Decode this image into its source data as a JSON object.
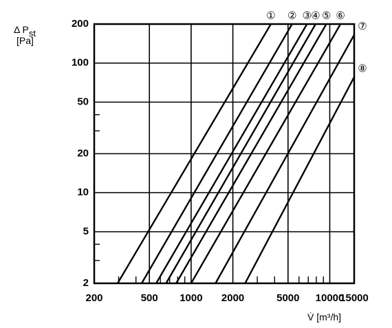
{
  "chart_data": {
    "type": "line",
    "scale": {
      "x": "log",
      "y": "log"
    },
    "xlim": [
      200,
      15000
    ],
    "ylim": [
      2,
      200
    ],
    "grid": true,
    "ylabel": {
      "symbol": "Δ P",
      "subscript": "st",
      "unit": "[Pa]"
    },
    "xlabel": "V̇ [m³/h]",
    "x_ticks": [
      {
        "value": 200,
        "label": "200"
      },
      {
        "value": 500,
        "label": "500"
      },
      {
        "value": 1000,
        "label": "1000"
      },
      {
        "value": 2000,
        "label": "2000"
      },
      {
        "value": 5000,
        "label": "5000"
      },
      {
        "value": 10000,
        "label": "10000"
      },
      {
        "value": 15000,
        "label": "15000"
      }
    ],
    "y_ticks": [
      {
        "value": 2,
        "label": "2"
      },
      {
        "value": 5,
        "label": "5"
      },
      {
        "value": 10,
        "label": "10"
      },
      {
        "value": 20,
        "label": "20"
      },
      {
        "value": 50,
        "label": "50"
      },
      {
        "value": 100,
        "label": "100"
      },
      {
        "value": 200,
        "label": "200"
      }
    ],
    "x_grid_major": [
      500,
      1000,
      2000,
      5000,
      10000
    ],
    "x_grid_minor": [
      300,
      400,
      600,
      700,
      800,
      900,
      3000,
      4000,
      6000,
      7000,
      8000,
      9000
    ],
    "y_grid_major": [
      5,
      10,
      20,
      50,
      100
    ],
    "y_grid_minor": [
      3,
      4,
      30,
      40
    ],
    "series": [
      {
        "label": "①",
        "x": [
          295,
          3760
        ],
        "y": [
          2,
          200
        ]
      },
      {
        "label": "②",
        "x": [
          440,
          5350
        ],
        "y": [
          2,
          200
        ]
      },
      {
        "label": "③",
        "x": [
          560,
          6850
        ],
        "y": [
          2,
          200
        ]
      },
      {
        "label": "④",
        "x": [
          660,
          7900
        ],
        "y": [
          2,
          200
        ]
      },
      {
        "label": "⑤",
        "x": [
          780,
          9450
        ],
        "y": [
          2,
          200
        ]
      },
      {
        "label": "⑥",
        "x": [
          1000,
          11950
        ],
        "y": [
          2,
          200
        ]
      },
      {
        "label": "⑦",
        "x": [
          1500,
          15000
        ],
        "y": [
          2,
          165
        ]
      },
      {
        "label": "⑧",
        "x": [
          2450,
          15000
        ],
        "y": [
          2,
          78
        ]
      }
    ]
  }
}
